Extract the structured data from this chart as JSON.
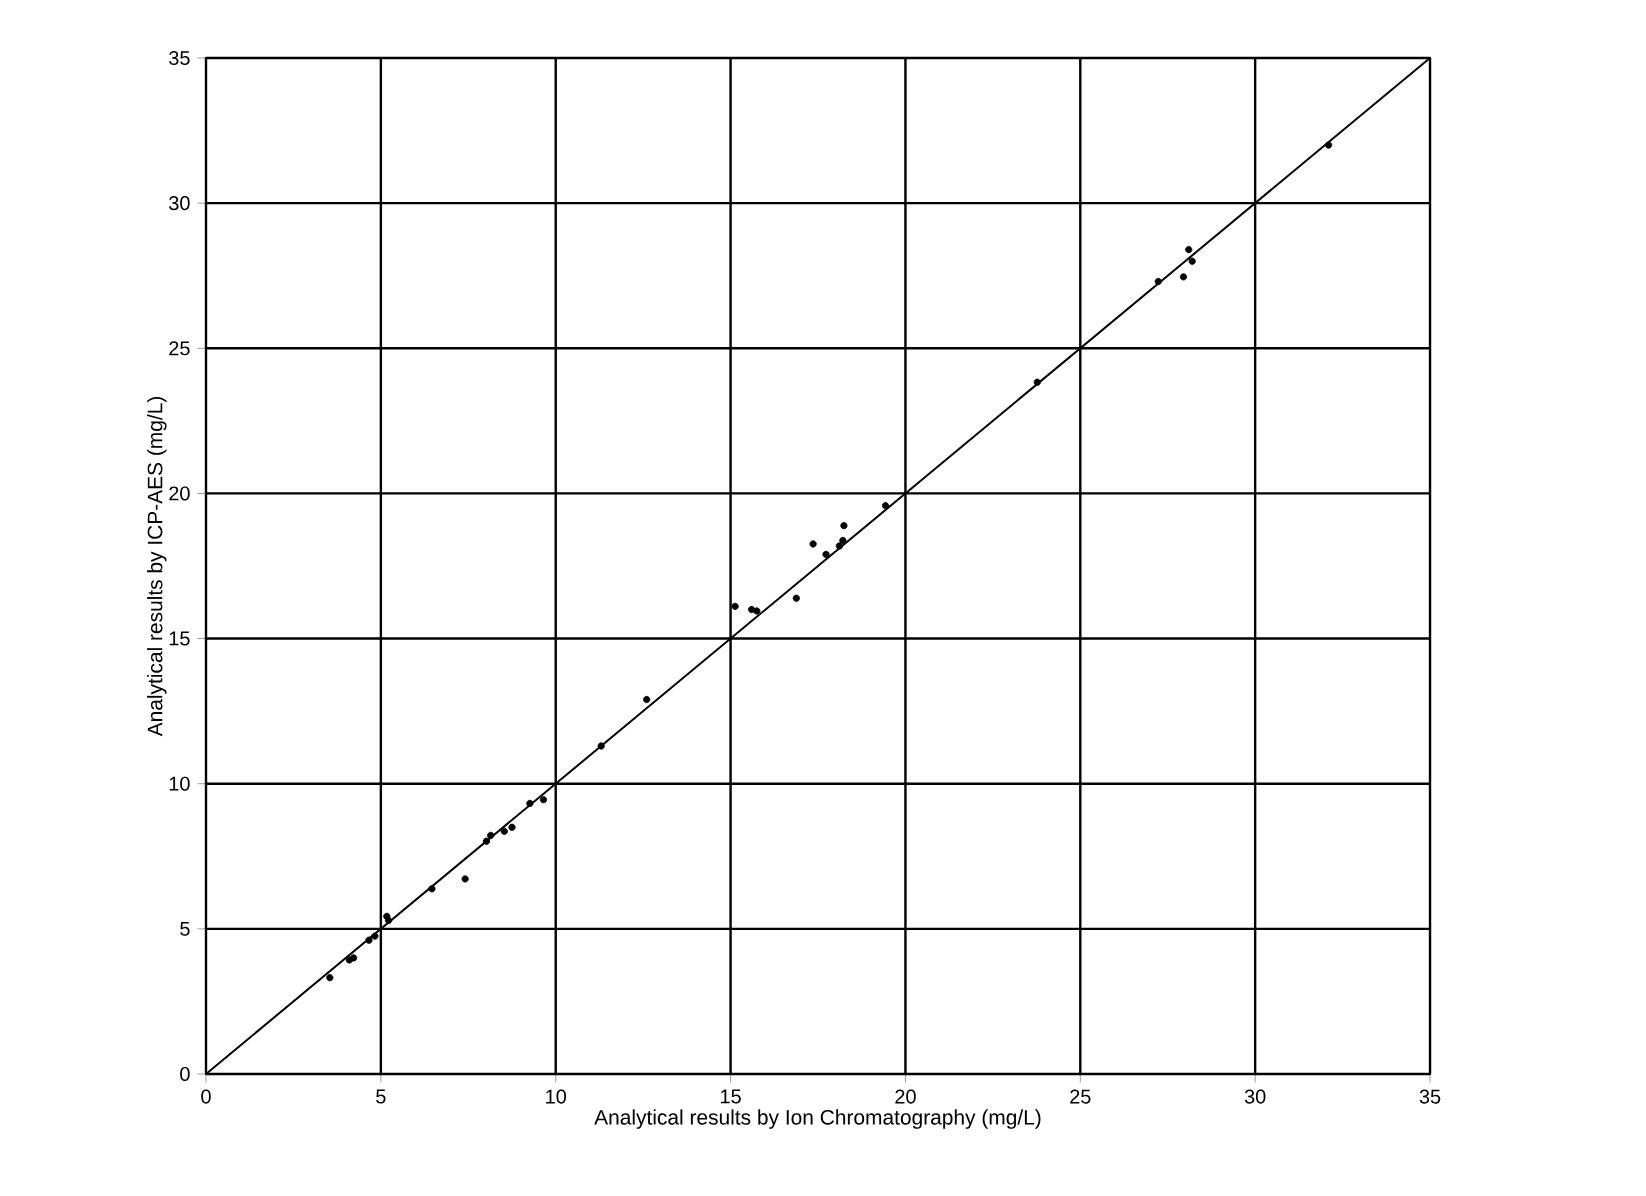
{
  "chart_data": {
    "type": "scatter",
    "xlabel": "Analytical results by Ion Chromatography (mg/L)",
    "ylabel": "Analytical results by ICP-AES (mg/L)",
    "xlim": [
      0,
      35
    ],
    "ylim": [
      0,
      35
    ],
    "xticks": [
      0,
      5,
      10,
      15,
      20,
      25,
      30,
      35
    ],
    "yticks": [
      0,
      5,
      10,
      15,
      20,
      25,
      30,
      35
    ],
    "grid": true,
    "series": [
      {
        "color": "#000000",
        "marker": "circle",
        "x": [
          3.54,
          4.1,
          4.22,
          4.66,
          4.83,
          5.17,
          5.22,
          6.46,
          7.41,
          8.02,
          8.14,
          8.53,
          8.75,
          9.26,
          9.65,
          11.3,
          12.6,
          15.13,
          15.6,
          15.75,
          16.88,
          17.36,
          17.73,
          18.11,
          18.21,
          18.24,
          19.43,
          23.77,
          27.23,
          27.95,
          28.1,
          28.2,
          32.1
        ],
        "values": [
          3.32,
          3.93,
          4.0,
          4.61,
          4.75,
          5.43,
          5.29,
          6.38,
          6.72,
          8.02,
          8.22,
          8.36,
          8.5,
          9.32,
          9.45,
          11.3,
          12.9,
          16.11,
          16.0,
          15.95,
          16.39,
          18.26,
          17.9,
          18.19,
          18.38,
          18.89,
          19.58,
          23.83,
          27.3,
          27.46,
          28.4,
          28.0,
          32.0
        ]
      },
      {
        "type": "line",
        "marker": "none",
        "color": "#000000",
        "x": [
          0,
          35
        ],
        "values": [
          0,
          35
        ]
      }
    ]
  }
}
